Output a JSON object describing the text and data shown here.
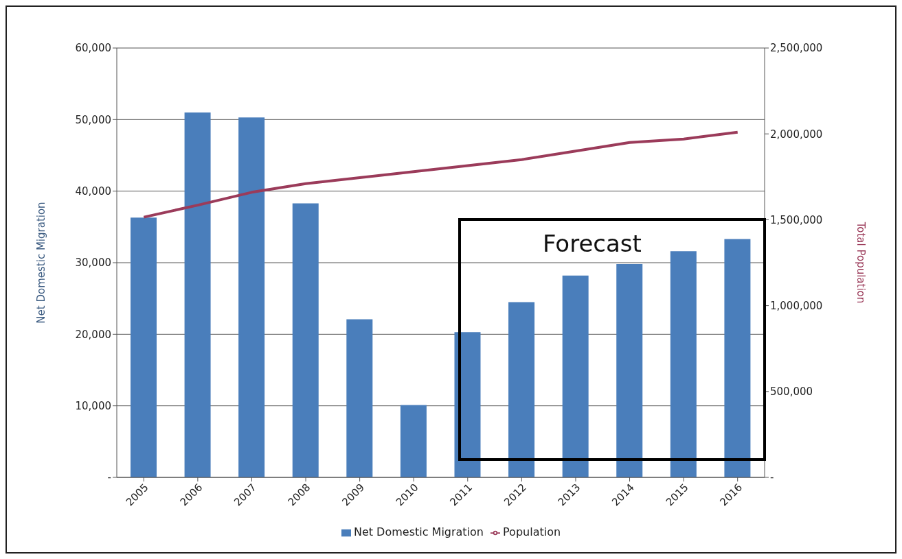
{
  "chart_data": {
    "type": "bar",
    "categories": [
      "2005",
      "2006",
      "2007",
      "2008",
      "2009",
      "2010",
      "2011",
      "2012",
      "2013",
      "2014",
      "2015",
      "2016"
    ],
    "series": [
      {
        "name": "Net Domestic Migration",
        "color": "#4a7ebb",
        "values": [
          36300,
          51000,
          50300,
          38300,
          22100,
          10100,
          20300,
          24500,
          28200,
          29800,
          31600,
          33300
        ]
      },
      {
        "name": "Population",
        "type": "line",
        "axis": "y2",
        "color": "#9b3b5a",
        "values": [
          1515000,
          1585000,
          1660000,
          1710000,
          1745000,
          1780000,
          1815000,
          1850000,
          1900000,
          1950000,
          1970000,
          2010000
        ]
      }
    ],
    "ylabel": "Net Domestic Migration",
    "y2label": "Total Population",
    "ylim": [
      0,
      60000
    ],
    "yticks": [
      {
        "value": 0,
        "label": "-"
      },
      {
        "value": 10000,
        "label": "10,000"
      },
      {
        "value": 20000,
        "label": "20,000"
      },
      {
        "value": 30000,
        "label": "30,000"
      },
      {
        "value": 40000,
        "label": "40,000"
      },
      {
        "value": 50000,
        "label": "50,000"
      },
      {
        "value": 60000,
        "label": "60,000"
      }
    ],
    "y2lim": [
      0,
      2500000
    ],
    "y2ticks": [
      {
        "value": 0,
        "label": "-"
      },
      {
        "value": 500000,
        "label": "500,000"
      },
      {
        "value": 1000000,
        "label": "1,000,000"
      },
      {
        "value": 1500000,
        "label": "1,500,000"
      },
      {
        "value": 2000000,
        "label": "2,000,000"
      },
      {
        "value": 2500000,
        "label": "2,500,000"
      }
    ],
    "annotations": [
      "Forecast"
    ],
    "grid": "y",
    "legend": "bottom",
    "marker": "none"
  }
}
